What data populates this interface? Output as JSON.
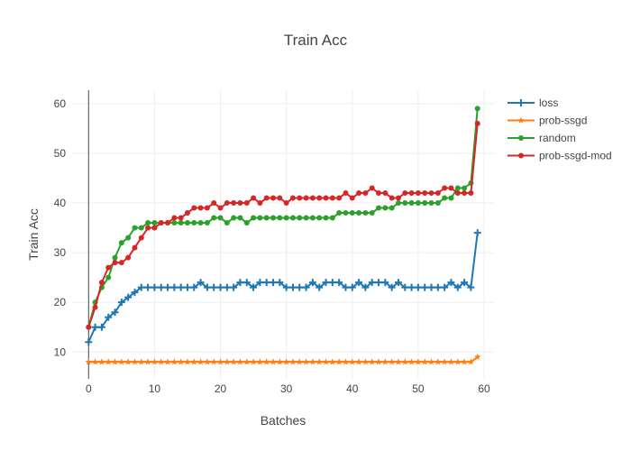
{
  "chart_data": {
    "type": "line",
    "title": "Train Acc",
    "xlabel": "Batches",
    "ylabel": "Train Acc",
    "xlim": [
      -2.5,
      61.5
    ],
    "ylim": [
      4.6,
      62.7
    ],
    "x_ticks": [
      0,
      10,
      20,
      30,
      40,
      50,
      60
    ],
    "y_ticks": [
      10,
      20,
      30,
      40,
      50,
      60
    ],
    "grid": true,
    "legend_position": "top-right",
    "x": [
      0,
      1,
      2,
      3,
      4,
      5,
      6,
      7,
      8,
      9,
      10,
      11,
      12,
      13,
      14,
      15,
      16,
      17,
      18,
      19,
      20,
      21,
      22,
      23,
      24,
      25,
      26,
      27,
      28,
      29,
      30,
      31,
      32,
      33,
      34,
      35,
      36,
      37,
      38,
      39,
      40,
      41,
      42,
      43,
      44,
      45,
      46,
      47,
      48,
      49,
      50,
      51,
      52,
      53,
      54,
      55,
      56,
      57,
      58,
      59
    ],
    "series": [
      {
        "name": "loss",
        "color": "#1f77b4",
        "marker": "cross",
        "values": [
          12,
          15,
          15,
          17,
          18,
          20,
          21,
          22,
          23,
          23,
          23,
          23,
          23,
          23,
          23,
          23,
          23,
          24,
          23,
          23,
          23,
          23,
          23,
          24,
          24,
          23,
          24,
          24,
          24,
          24,
          23,
          23,
          23,
          23,
          24,
          23,
          24,
          24,
          24,
          23,
          23,
          24,
          23,
          24,
          24,
          24,
          23,
          24,
          23,
          23,
          23,
          23,
          23,
          23,
          23,
          24,
          23,
          24,
          23,
          34
        ]
      },
      {
        "name": "prob-ssgd",
        "color": "#ff7f0e",
        "marker": "star",
        "values": [
          8,
          8,
          8,
          8,
          8,
          8,
          8,
          8,
          8,
          8,
          8,
          8,
          8,
          8,
          8,
          8,
          8,
          8,
          8,
          8,
          8,
          8,
          8,
          8,
          8,
          8,
          8,
          8,
          8,
          8,
          8,
          8,
          8,
          8,
          8,
          8,
          8,
          8,
          8,
          8,
          8,
          8,
          8,
          8,
          8,
          8,
          8,
          8,
          8,
          8,
          8,
          8,
          8,
          8,
          8,
          8,
          8,
          8,
          8,
          9
        ]
      },
      {
        "name": "random",
        "color": "#2ca02c",
        "marker": "circle",
        "values": [
          15,
          20,
          23,
          25,
          29,
          32,
          33,
          35,
          35,
          36,
          36,
          36,
          36,
          36,
          36,
          36,
          36,
          36,
          36,
          37,
          37,
          36,
          37,
          37,
          36,
          37,
          37,
          37,
          37,
          37,
          37,
          37,
          37,
          37,
          37,
          37,
          37,
          37,
          38,
          38,
          38,
          38,
          38,
          38,
          39,
          39,
          39,
          40,
          40,
          40,
          40,
          40,
          40,
          40,
          41,
          41,
          43,
          43,
          44,
          59
        ]
      },
      {
        "name": "prob-ssgd-mod",
        "color": "#d62728",
        "marker": "circle",
        "values": [
          15,
          19,
          24,
          27,
          28,
          28,
          29,
          31,
          33,
          35,
          35,
          36,
          36,
          37,
          37,
          38,
          39,
          39,
          39,
          40,
          39,
          40,
          40,
          40,
          40,
          41,
          40,
          41,
          41,
          41,
          40,
          41,
          41,
          41,
          41,
          41,
          41,
          41,
          41,
          42,
          41,
          42,
          42,
          43,
          42,
          42,
          41,
          41,
          42,
          42,
          42,
          42,
          42,
          42,
          43,
          43,
          42,
          42,
          42,
          56
        ]
      }
    ]
  }
}
